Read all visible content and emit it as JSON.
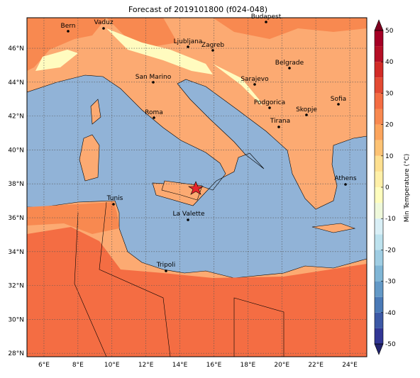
{
  "title": "Forecast of 2019101800 (f024-048)",
  "map": {
    "xlim": [
      5,
      25
    ],
    "ylim": [
      27.8,
      47.8
    ],
    "xticks": [
      {
        "value": 6,
        "label": "6°E"
      },
      {
        "value": 8,
        "label": "8°E"
      },
      {
        "value": 10,
        "label": "10°E"
      },
      {
        "value": 12,
        "label": "12°E"
      },
      {
        "value": 14,
        "label": "14°E"
      },
      {
        "value": 16,
        "label": "16°E"
      },
      {
        "value": 18,
        "label": "18°E"
      },
      {
        "value": 20,
        "label": "20°E"
      },
      {
        "value": 22,
        "label": "22°E"
      },
      {
        "value": 24,
        "label": "24°E"
      }
    ],
    "yticks": [
      {
        "value": 28,
        "label": "28°N"
      },
      {
        "value": 30,
        "label": "30°N"
      },
      {
        "value": 32,
        "label": "32°N"
      },
      {
        "value": 34,
        "label": "34°N"
      },
      {
        "value": 36,
        "label": "36°N"
      },
      {
        "value": 38,
        "label": "38°N"
      },
      {
        "value": 40,
        "label": "40°N"
      },
      {
        "value": 42,
        "label": "42°N"
      },
      {
        "value": 44,
        "label": "44°N"
      },
      {
        "value": 46,
        "label": "46°N"
      }
    ],
    "grid": true,
    "cities": [
      "Bern",
      "Vaduz",
      "Budapest",
      "Ljubljana",
      "Zagreb",
      "Belgrade",
      "San Marino",
      "Sarajevo",
      "Sofia",
      "Roma",
      "Podgorica",
      "Skopje",
      "Tirana",
      "Athens",
      "Tunis",
      "La Valette",
      "Tripoli"
    ]
  },
  "colorbar": {
    "label": "Min Temperature (°C)",
    "lim": [
      -50,
      50
    ],
    "ticks": [
      -50,
      -40,
      -30,
      -20,
      -10,
      0,
      10,
      20,
      30,
      40,
      50
    ],
    "colors": [
      "#313695",
      "#3c59a6",
      "#4a7ab7",
      "#6399c7",
      "#80b6d6",
      "#9fcde3",
      "#bde2ee",
      "#d9eff6",
      "#eff9db",
      "#fffebe",
      "#fff0a8",
      "#fee090",
      "#fdc374",
      "#fca55d",
      "#f88950",
      "#f46d43",
      "#e34a33",
      "#d22b27",
      "#b50f26",
      "#a50026"
    ],
    "under_color": "#23246e",
    "over_color": "#7f0020"
  }
}
